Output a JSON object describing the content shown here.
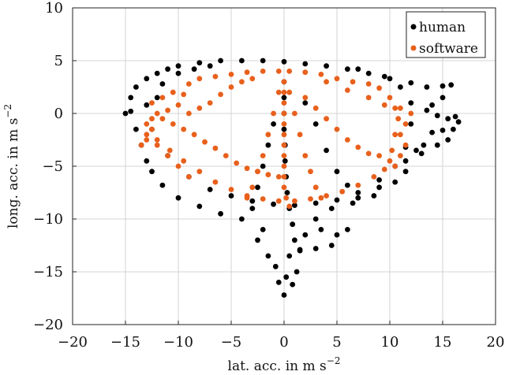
{
  "chart_data": {
    "type": "scatter",
    "title": "",
    "xlabel": "lat. acc. in m s",
    "xlabel_sup": "−2",
    "ylabel": "long. acc. in m s",
    "ylabel_sup": "−2",
    "xlim": [
      -20,
      20
    ],
    "ylim": [
      -20,
      10
    ],
    "xticks": [
      -20,
      -15,
      -10,
      -5,
      0,
      5,
      10,
      15,
      20
    ],
    "yticks": [
      -20,
      -15,
      -10,
      -5,
      0,
      5,
      10
    ],
    "xtick_labels": [
      "−20",
      "−15",
      "−10",
      "−5",
      "0",
      "5",
      "10",
      "15",
      "20"
    ],
    "ytick_labels": [
      "−20",
      "−15",
      "−10",
      "−5",
      "0",
      "5",
      "10"
    ],
    "grid": true,
    "legend_position": "top-right",
    "series": [
      {
        "name": "human",
        "color": "#000000",
        "points": [
          [
            -14.5,
            0.2
          ],
          [
            -14.5,
            1.5
          ],
          [
            -14.0,
            2.5
          ],
          [
            -13.0,
            3.3
          ],
          [
            -12.0,
            3.8
          ],
          [
            -11.0,
            4.2
          ],
          [
            -10.0,
            4.5
          ],
          [
            -8.0,
            4.8
          ],
          [
            -6.0,
            5.0
          ],
          [
            -4.0,
            5.0
          ],
          [
            -2.0,
            5.0
          ],
          [
            0.0,
            4.9
          ],
          [
            2.0,
            4.7
          ],
          [
            4.0,
            4.5
          ],
          [
            6.0,
            4.2
          ],
          [
            8.0,
            3.8
          ],
          [
            10.0,
            3.3
          ],
          [
            12.0,
            2.9
          ],
          [
            13.5,
            2.5
          ],
          [
            15.0,
            2.6
          ],
          [
            15.8,
            2.7
          ],
          [
            15.0,
            1.5
          ],
          [
            14.0,
            0.8
          ],
          [
            13.5,
            0.3
          ],
          [
            14.5,
            -0.2
          ],
          [
            15.5,
            -0.5
          ],
          [
            16.2,
            -0.3
          ],
          [
            16.5,
            -0.8
          ],
          [
            16.0,
            -1.5
          ],
          [
            15.0,
            -1.6
          ],
          [
            14.0,
            -1.8
          ],
          [
            13.2,
            -3.0
          ],
          [
            12.5,
            -3.5
          ],
          [
            11.5,
            -4.5
          ],
          [
            10.5,
            -6.5
          ],
          [
            8.5,
            -7.8
          ],
          [
            6.5,
            -8.5
          ],
          [
            4.5,
            -9.0
          ],
          [
            3.0,
            -10.0
          ],
          [
            2.0,
            -11.5
          ],
          [
            1.5,
            -13.0
          ],
          [
            1.2,
            -15.0
          ],
          [
            0.8,
            -16.2
          ],
          [
            0.0,
            -17.2
          ],
          [
            -0.5,
            -16.0
          ],
          [
            -0.8,
            -14.5
          ],
          [
            -1.5,
            -13.5
          ],
          [
            -2.5,
            -12.0
          ],
          [
            -2.0,
            -11.0
          ],
          [
            -4.0,
            -10.0
          ],
          [
            -6.0,
            -9.5
          ],
          [
            -8.0,
            -8.8
          ],
          [
            -10.0,
            -8.0
          ],
          [
            -11.5,
            -6.8
          ],
          [
            -12.5,
            -5.5
          ],
          [
            -13.0,
            -4.5
          ],
          [
            -13.5,
            -3.0
          ],
          [
            -14.0,
            -1.5
          ],
          [
            -15.0,
            0.0
          ],
          [
            -13.0,
            0.8
          ],
          [
            -12.0,
            1.5
          ],
          [
            -11.5,
            2.8
          ],
          [
            -10.0,
            3.8
          ],
          [
            -8.5,
            4.2
          ],
          [
            -7.0,
            4.5
          ],
          [
            -12.5,
            -1.5
          ],
          [
            -11.0,
            -4.0
          ],
          [
            -9.0,
            -6.0
          ],
          [
            -7.0,
            -7.2
          ],
          [
            -5.0,
            -7.8
          ],
          [
            -3.0,
            -8.3
          ],
          [
            -1.0,
            -8.6
          ],
          [
            1.0,
            -8.7
          ],
          [
            3.0,
            -8.5
          ],
          [
            5.0,
            -8.2
          ],
          [
            7.0,
            -7.5
          ],
          [
            9.0,
            -6.3
          ],
          [
            10.5,
            -5.0
          ],
          [
            11.5,
            -3.2
          ],
          [
            12.0,
            -1.0
          ],
          [
            12.0,
            1.0
          ],
          [
            11.0,
            2.5
          ],
          [
            9.5,
            3.5
          ],
          [
            7.0,
            4.2
          ],
          [
            0.0,
            3.0
          ],
          [
            0.0,
            1.5
          ],
          [
            0.0,
            0.0
          ],
          [
            0.0,
            -1.5
          ],
          [
            0.1,
            -3.0
          ],
          [
            0.1,
            -4.5
          ],
          [
            0.2,
            -6.0
          ],
          [
            0.3,
            -7.5
          ],
          [
            0.5,
            -9.0
          ],
          [
            0.8,
            -10.5
          ],
          [
            1.0,
            -12.0
          ],
          [
            0.5,
            -13.5
          ],
          [
            0.2,
            -15.5
          ],
          [
            2.0,
            1.0
          ],
          [
            3.0,
            -1.0
          ],
          [
            4.0,
            -3.5
          ],
          [
            5.0,
            -5.5
          ],
          [
            6.0,
            -6.8
          ],
          [
            7.0,
            -8.0
          ],
          [
            9.0,
            -7.0
          ],
          [
            11.5,
            -5.5
          ],
          [
            13.0,
            -3.8
          ],
          [
            14.5,
            -3.0
          ],
          [
            15.5,
            -2.5
          ],
          [
            -1.0,
            -1.0
          ],
          [
            -1.5,
            -3.0
          ],
          [
            -2.0,
            -5.0
          ],
          [
            -2.5,
            -7.0
          ],
          [
            -3.0,
            -9.0
          ],
          [
            3.5,
            -11.0
          ],
          [
            5.0,
            -11.5
          ],
          [
            6.0,
            -11.0
          ],
          [
            4.5,
            -12.5
          ],
          [
            3.0,
            -12.8
          ],
          [
            1.5,
            -12.9
          ]
        ]
      },
      {
        "name": "software",
        "color": "#e8601c",
        "points": [
          [
            -13.5,
            -3.0
          ],
          [
            -13.0,
            -2.5
          ],
          [
            -12.5,
            -1.5
          ],
          [
            -12.5,
            -0.5
          ],
          [
            -12.0,
            0.0
          ],
          [
            -11.0,
            0.3
          ],
          [
            -10.0,
            0.8
          ],
          [
            -9.5,
            1.8
          ],
          [
            -9.0,
            2.8
          ],
          [
            -8.0,
            3.3
          ],
          [
            -6.5,
            3.5
          ],
          [
            -5.0,
            3.7
          ],
          [
            -3.5,
            3.9
          ],
          [
            -2.0,
            4.0
          ],
          [
            -0.5,
            4.0
          ],
          [
            0.5,
            4.0
          ],
          [
            2.0,
            3.9
          ],
          [
            3.5,
            3.7
          ],
          [
            5.0,
            3.3
          ],
          [
            6.5,
            3.0
          ],
          [
            8.0,
            2.8
          ],
          [
            9.0,
            2.4
          ],
          [
            10.0,
            1.5
          ],
          [
            10.5,
            0.5
          ],
          [
            10.8,
            -0.5
          ],
          [
            10.5,
            -2.0
          ],
          [
            10.2,
            -3.5
          ],
          [
            10.0,
            -4.5
          ],
          [
            9.5,
            -5.3
          ],
          [
            8.5,
            -6.0
          ],
          [
            7.0,
            -6.8
          ],
          [
            5.5,
            -7.4
          ],
          [
            4.0,
            -7.8
          ],
          [
            2.5,
            -8.1
          ],
          [
            1.0,
            -8.3
          ],
          [
            -0.5,
            -8.3
          ],
          [
            -2.0,
            -8.1
          ],
          [
            -3.5,
            -7.8
          ],
          [
            -5.0,
            -7.2
          ],
          [
            -6.5,
            -6.5
          ],
          [
            -8.0,
            -5.5
          ],
          [
            -9.5,
            -4.5
          ],
          [
            -10.8,
            -3.5
          ],
          [
            -12.0,
            -2.5
          ],
          [
            -11.5,
            -0.5
          ],
          [
            -10.5,
            -1.0
          ],
          [
            -9.5,
            -1.5
          ],
          [
            -8.5,
            -2.0
          ],
          [
            -7.5,
            -2.7
          ],
          [
            -6.5,
            -3.3
          ],
          [
            -5.5,
            -4.0
          ],
          [
            -4.5,
            -4.7
          ],
          [
            -3.5,
            -5.2
          ],
          [
            -2.5,
            -5.5
          ],
          [
            -1.5,
            -5.8
          ],
          [
            -0.5,
            -6.0
          ],
          [
            -9.0,
            0.0
          ],
          [
            -8.0,
            0.5
          ],
          [
            -7.0,
            1.0
          ],
          [
            -6.0,
            1.8
          ],
          [
            -5.0,
            2.5
          ],
          [
            -4.0,
            3.0
          ],
          [
            -3.0,
            3.3
          ],
          [
            0.0,
            3.0
          ],
          [
            0.0,
            2.0
          ],
          [
            0.0,
            1.0
          ],
          [
            0.0,
            0.0
          ],
          [
            0.0,
            -1.0
          ],
          [
            0.0,
            -2.0
          ],
          [
            0.0,
            -3.0
          ],
          [
            0.0,
            -4.0
          ],
          [
            0.0,
            -5.0
          ],
          [
            0.0,
            -6.0
          ],
          [
            0.0,
            -7.0
          ],
          [
            0.2,
            -8.0
          ],
          [
            0.5,
            -8.8
          ],
          [
            -0.5,
            2.0
          ],
          [
            -1.0,
            0.0
          ],
          [
            -1.5,
            -2.0
          ],
          [
            -2.0,
            -4.0
          ],
          [
            -2.5,
            -5.5
          ],
          [
            -3.0,
            -7.0
          ],
          [
            -3.5,
            -8.0
          ],
          [
            0.5,
            2.0
          ],
          [
            1.0,
            0.0
          ],
          [
            1.5,
            -2.0
          ],
          [
            2.0,
            -4.0
          ],
          [
            2.5,
            -5.5
          ],
          [
            3.0,
            -7.0
          ],
          [
            3.5,
            -8.0
          ],
          [
            2.0,
            1.5
          ],
          [
            3.0,
            0.5
          ],
          [
            4.0,
            -0.5
          ],
          [
            5.0,
            -1.5
          ],
          [
            6.0,
            -2.5
          ],
          [
            7.0,
            -3.2
          ],
          [
            8.0,
            -3.8
          ],
          [
            9.0,
            -4.0
          ],
          [
            4.0,
            3.0
          ],
          [
            6.0,
            2.2
          ],
          [
            8.0,
            1.5
          ],
          [
            9.5,
            0.8
          ],
          [
            11.0,
            0.5
          ],
          [
            12.0,
            0.0
          ],
          [
            11.5,
            -1.0
          ],
          [
            11.0,
            -2.0
          ],
          [
            11.5,
            -3.0
          ],
          [
            11.0,
            -4.0
          ],
          [
            10.5,
            -5.0
          ],
          [
            -12.5,
            1.0
          ],
          [
            -11.5,
            1.5
          ],
          [
            -10.5,
            2.0
          ],
          [
            -13.0,
            -1.0
          ],
          [
            -13.0,
            -2.0
          ],
          [
            -12.0,
            -3.0
          ],
          [
            -11.0,
            -4.0
          ],
          [
            -10.0,
            -5.0
          ],
          [
            -9.0,
            -6.0
          ]
        ]
      }
    ]
  }
}
